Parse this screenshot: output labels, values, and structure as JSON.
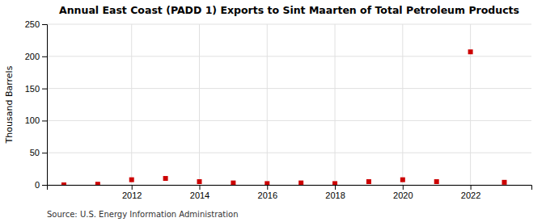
{
  "chart_data": {
    "type": "scatter",
    "title": "Annual East Coast (PADD 1) Exports to Sint Maarten of Total Petroleum Products",
    "ylabel": "Thousand Barrels",
    "source": "Source: U.S. Energy Information Administration",
    "x": [
      2010,
      2011,
      2012,
      2013,
      2014,
      2015,
      2016,
      2017,
      2018,
      2019,
      2020,
      2021,
      2022,
      2023
    ],
    "values": [
      0,
      1,
      8,
      10,
      5,
      3,
      2,
      3,
      2,
      5,
      8,
      5,
      207,
      4
    ],
    "color": "#cc0000",
    "marker": "square",
    "xlim": [
      2009.5,
      2023.8
    ],
    "xticks": [
      2012,
      2014,
      2016,
      2018,
      2020,
      2022
    ],
    "ylim": [
      0,
      250
    ],
    "yticks": [
      0,
      50,
      100,
      150,
      200,
      250
    ],
    "grid": true
  }
}
